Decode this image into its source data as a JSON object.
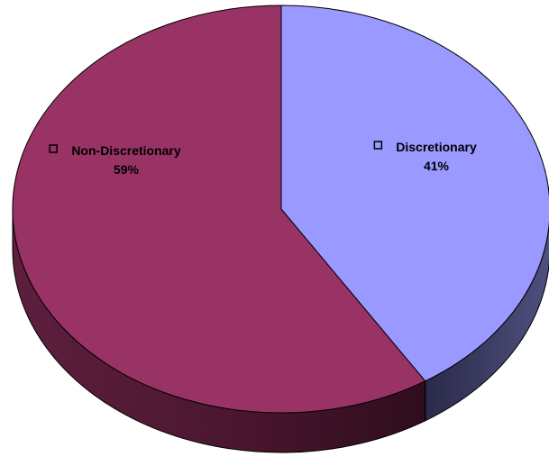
{
  "chart_data": {
    "type": "pie",
    "title": "",
    "style": "3d",
    "slices": [
      {
        "label": "Discretionary",
        "value": 41,
        "value_label": "41%",
        "color": "#9999ff",
        "side_color": "#3d3d66"
      },
      {
        "label": "Non-Discretionary",
        "value": 59,
        "value_label": "59%",
        "color": "#993366",
        "side_color": "#5a1e3b"
      }
    ],
    "legend": "none"
  }
}
